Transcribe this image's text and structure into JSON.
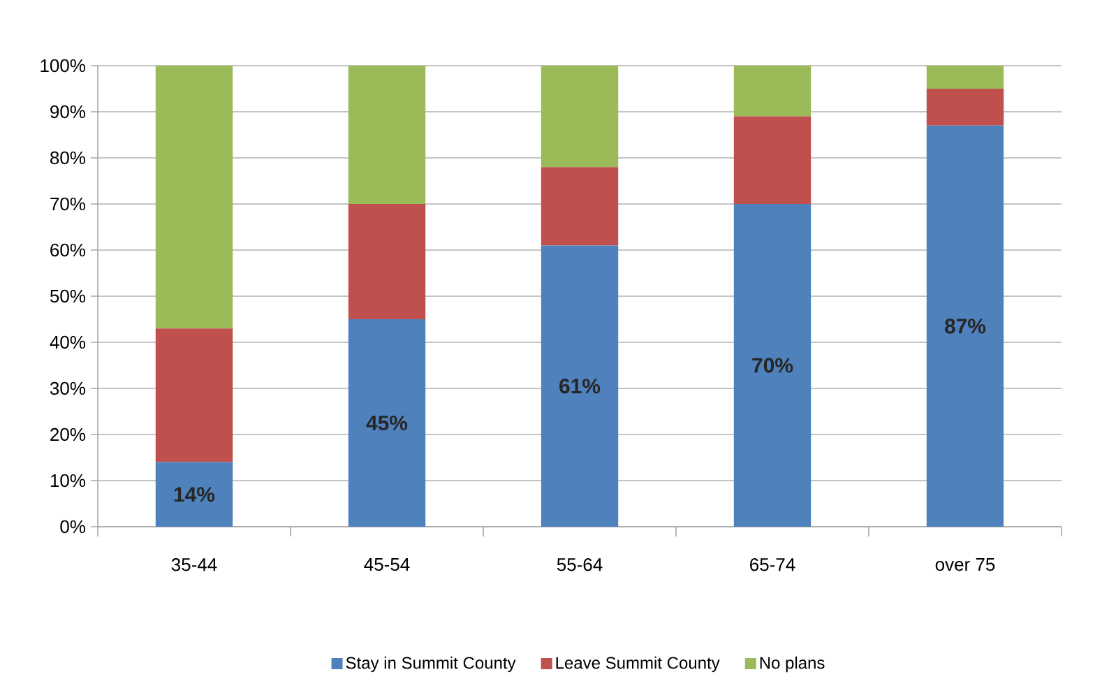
{
  "chart_data": {
    "type": "bar",
    "stacked": true,
    "categories": [
      "35-44",
      "45-54",
      "55-64",
      "65-74",
      "over 75"
    ],
    "series": [
      {
        "name": "Stay in Summit County",
        "color": "#4f81bd",
        "values": [
          14,
          45,
          61,
          70,
          87
        ],
        "value_labels": [
          "14%",
          "45%",
          "61%",
          "70%",
          "87%"
        ]
      },
      {
        "name": "Leave Summit County",
        "color": "#c0504d",
        "values": [
          29,
          25,
          17,
          19,
          8
        ]
      },
      {
        "name": "No plans",
        "color": "#9bbb59",
        "values": [
          57,
          30,
          22,
          11,
          5
        ]
      }
    ],
    "ylim": [
      0,
      100
    ],
    "yticks": [
      {
        "value": 0,
        "label": "0%"
      },
      {
        "value": 10,
        "label": "10%"
      },
      {
        "value": 20,
        "label": "20%"
      },
      {
        "value": 30,
        "label": "30%"
      },
      {
        "value": 40,
        "label": "40%"
      },
      {
        "value": 50,
        "label": "50%"
      },
      {
        "value": 60,
        "label": "60%"
      },
      {
        "value": 70,
        "label": "70%"
      },
      {
        "value": 80,
        "label": "80%"
      },
      {
        "value": 90,
        "label": "90%"
      },
      {
        "value": 100,
        "label": "100%"
      }
    ],
    "grid": "y",
    "legend": "bottom"
  }
}
